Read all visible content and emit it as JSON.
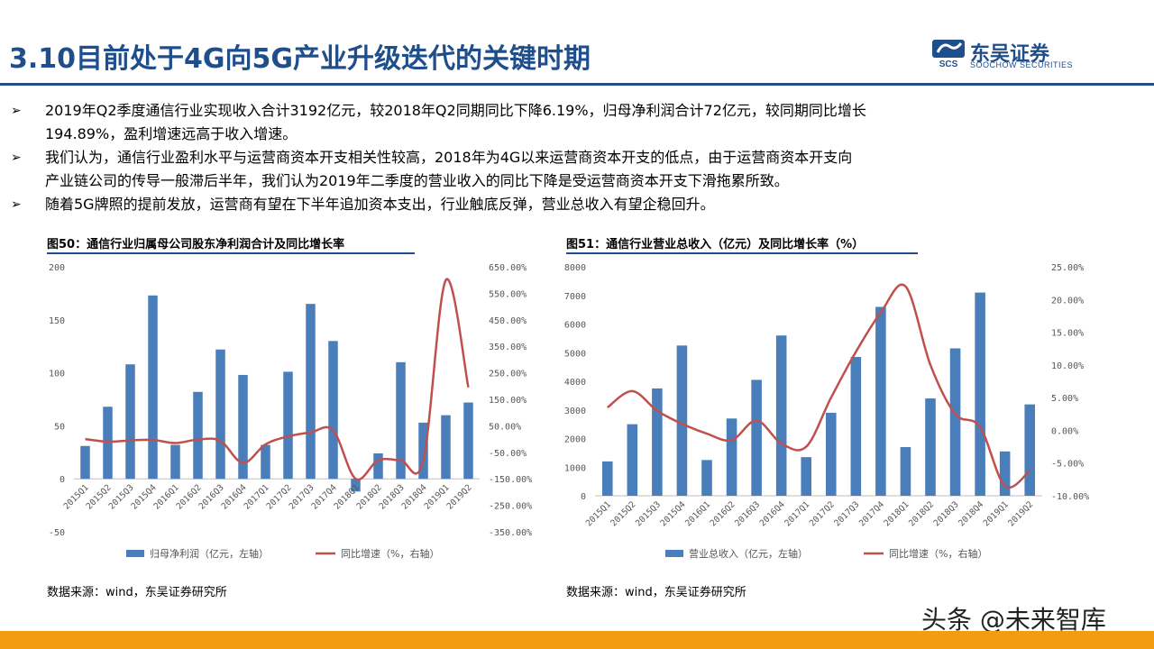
{
  "header": {
    "title": "3.10目前处于4G向5G产业升级迭代的关键时期",
    "logo_cn": "东吴证券",
    "logo_en": "SOOCHOW SECURITIES",
    "logo_mark_text": "SCS",
    "accent_color": "#1f4e8c"
  },
  "bullets": [
    {
      "line1": "2019年Q2季度通信行业实现收入合计3192亿元，较2018年Q2同期同比下降6.19%，归母净利润合计72亿元，较同期同比增长",
      "line2": "194.89%，盈利增速远高于收入增速。"
    },
    {
      "line1": "我们认为，通信行业盈利水平与运营商资本开支相关性较高，2018年为4G以来运营商资本开支的低点，由于运营商资本开支向",
      "line2": "产业链公司的传导一般滞后半年，我们认为2019年二季度的营业收入的同比下降是受运营商资本开支下滑拖累所致。"
    },
    {
      "line1": "随着5G牌照的提前发放，运营商有望在下半年追加资本支出，行业触底反弹，营业总收入有望企稳回升。",
      "line2": ""
    }
  ],
  "bullet_icon": "arrow-bullet-icon",
  "figure50": {
    "title": "图50：通信行业归属母公司股东净利润合计及同比增长率",
    "source": "数据来源：wind，东吴证券研究所"
  },
  "figure51": {
    "title": "图51：通信行业营业总收入（亿元）及同比增长率（%）",
    "source": "数据来源：wind，东吴证券研究所"
  },
  "watermark": "头条 @未来智库",
  "colors": {
    "bar": "#4a7ebb",
    "line": "#c0504d",
    "bottom_bar": "#f39c12"
  },
  "chart_data": [
    {
      "type": "bar",
      "categories": [
        "2015Q1",
        "2015Q2",
        "2015Q3",
        "2015Q4",
        "2016Q1",
        "2016Q2",
        "2016Q3",
        "2016Q4",
        "2017Q1",
        "2017Q2",
        "2017Q3",
        "2017Q4",
        "2018Q1",
        "2018Q2",
        "2018Q3",
        "2018Q4",
        "2019Q1",
        "2019Q2"
      ],
      "series": [
        {
          "name": "归母净利润（亿元，左轴）",
          "type": "bar",
          "axis": "left",
          "values": [
            31,
            68,
            108,
            173,
            32,
            82,
            122,
            98,
            32,
            101,
            165,
            130,
            -12,
            24,
            110,
            53,
            60,
            72
          ]
        },
        {
          "name": "同比增速（%，右轴）",
          "type": "line",
          "axis": "right",
          "values": [
            0.0,
            -10.0,
            -5.0,
            -3.0,
            -15.0,
            -2.0,
            -7.0,
            -90.0,
            -20.0,
            10.0,
            25.0,
            33.0,
            -150.0,
            -80.0,
            -80.0,
            -80.0,
            600.0,
            194.89
          ]
        }
      ],
      "y_left": {
        "min": -50,
        "max": 200,
        "ticks": [
          "200",
          "150",
          "100",
          "50",
          "0",
          "-50"
        ]
      },
      "y_right": {
        "min": -350,
        "max": 650,
        "ticks": [
          "650.00%",
          "550.00%",
          "450.00%",
          "350.00%",
          "250.00%",
          "150.00%",
          "50.00%",
          "-50.00%",
          "-150.00%",
          "-250.00%",
          "-350.00%"
        ]
      },
      "grid": false,
      "legend": "bottom"
    },
    {
      "type": "bar",
      "categories": [
        "2015Q1",
        "2015Q2",
        "2015Q3",
        "2015Q4",
        "2016Q1",
        "2016Q2",
        "2016Q3",
        "2016Q4",
        "2017Q1",
        "2017Q2",
        "2017Q3",
        "2017Q4",
        "2018Q1",
        "2018Q2",
        "2018Q3",
        "2018Q4",
        "2019Q1",
        "2019Q2"
      ],
      "series": [
        {
          "name": "营业总收入（亿元，左轴）",
          "type": "bar",
          "axis": "left",
          "values": [
            1200,
            2500,
            3750,
            5250,
            1250,
            2700,
            4050,
            5600,
            1350,
            2900,
            4850,
            6600,
            1700,
            3400,
            5150,
            7100,
            1550,
            3192
          ]
        },
        {
          "name": "同比增速（%，右轴）",
          "type": "line",
          "axis": "right",
          "values": [
            3.5,
            6.0,
            3.0,
            1.0,
            -0.5,
            -1.5,
            1.5,
            -2.0,
            -2.5,
            5.0,
            12.0,
            18.0,
            22.0,
            10.0,
            2.5,
            0.5,
            -8.5,
            -6.19
          ]
        }
      ],
      "y_left": {
        "min": 0,
        "max": 8000,
        "ticks": [
          "8000",
          "7000",
          "6000",
          "5000",
          "4000",
          "3000",
          "2000",
          "1000",
          "0"
        ]
      },
      "y_right": {
        "min": -10,
        "max": 25,
        "ticks": [
          "25.00%",
          "20.00%",
          "15.00%",
          "10.00%",
          "5.00%",
          "0.00%",
          "-5.00%",
          "-10.00%"
        ]
      },
      "grid": false,
      "legend": "bottom"
    }
  ]
}
